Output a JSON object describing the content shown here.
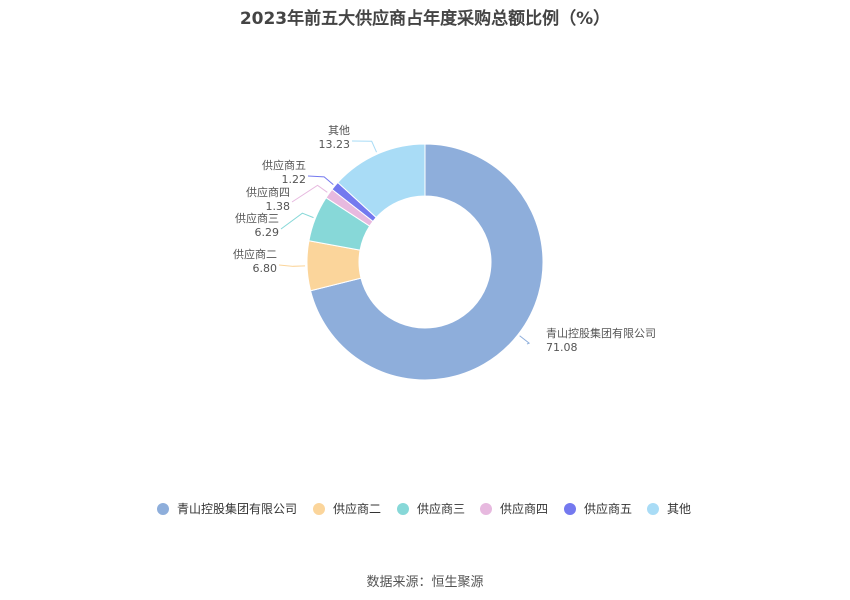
{
  "chart_data": {
    "type": "pie",
    "title": "2023年前五大供应商占年度采购总额比例（%）",
    "categories": [
      "青山控股集团有限公司",
      "供应商二",
      "供应商三",
      "供应商四",
      "供应商五",
      "其他"
    ],
    "values": [
      71.08,
      6.8,
      6.29,
      1.38,
      1.22,
      13.23
    ],
    "value_labels": [
      "71.08",
      "6.80",
      "6.29",
      "1.38",
      "1.22",
      "13.23"
    ],
    "colors": [
      "#8eaedb",
      "#fbd59b",
      "#87d8d8",
      "#e7b9df",
      "#7479ef",
      "#a9dcf6"
    ],
    "donut": true,
    "legend_position": "bottom"
  },
  "source_text": "数据来源：恒生聚源"
}
